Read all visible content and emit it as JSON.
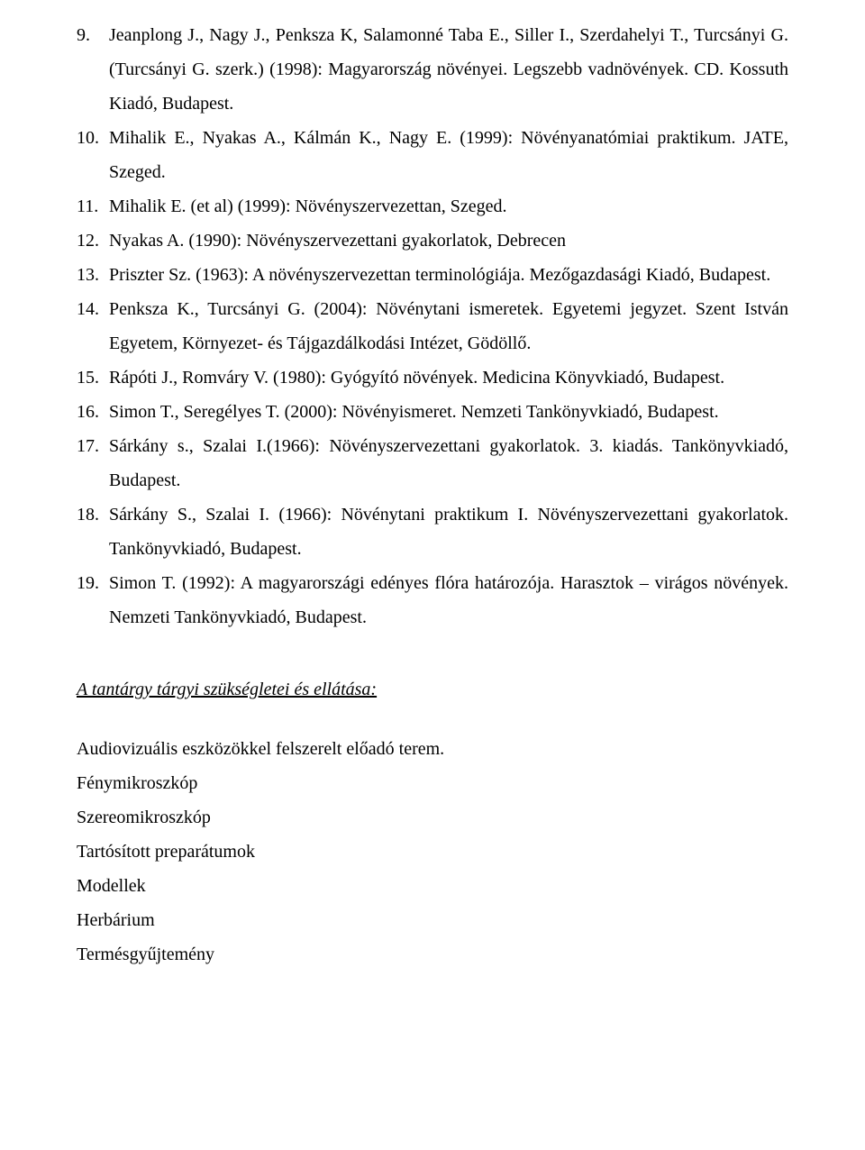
{
  "references": [
    "Jeanplong J., Nagy J., Penksza K, Salamonné Taba E., Siller I., Szerdahelyi T., Turcsányi G. (Turcsányi G. szerk.) (1998): Magyarország növényei. Legszebb vadnövények. CD. Kossuth Kiadó, Budapest.",
    "Mihalik E., Nyakas A., Kálmán K., Nagy E. (1999): Növényanatómiai praktikum. JATE, Szeged.",
    "Mihalik E. (et al) (1999): Növényszervezettan, Szeged.",
    "Nyakas A. (1990): Növényszervezettani gyakorlatok, Debrecen",
    "Priszter Sz. (1963): A növényszervezettan terminológiája. Mezőgazdasági Kiadó, Budapest.",
    "Penksza K., Turcsányi G. (2004): Növénytani ismeretek. Egyetemi jegyzet. Szent István Egyetem, Környezet- és Tájgazdálkodási Intézet, Gödöllő.",
    "Rápóti J., Romváry V. (1980): Gyógyító növények. Medicina Könyvkiadó, Budapest.",
    "Simon T., Seregélyes T. (2000): Növényismeret. Nemzeti Tankönyvkiadó, Budapest.",
    "Sárkány s., Szalai I.(1966): Növényszervezettani gyakorlatok. 3. kiadás. Tankönyvkiadó, Budapest.",
    "Sárkány S., Szalai I. (1966): Növénytani praktikum I. Növényszervezettani gyakorlatok. Tankönyvkiadó, Budapest.",
    "Simon T. (1992): A magyarországi edényes flóra határozója. Harasztok – virágos növények. Nemzeti Tankönyvkiadó, Budapest."
  ],
  "section_heading": "A tantárgy tárgyi szükségletei és ellátása:",
  "requirements": [
    "Audiovizuális eszközökkel felszerelt előadó terem.",
    "Fénymikroszkóp",
    "Szereomikroszkóp",
    "Tartósított preparátumok",
    "Modellek",
    "Herbárium",
    "Termésgyűjtemény"
  ]
}
